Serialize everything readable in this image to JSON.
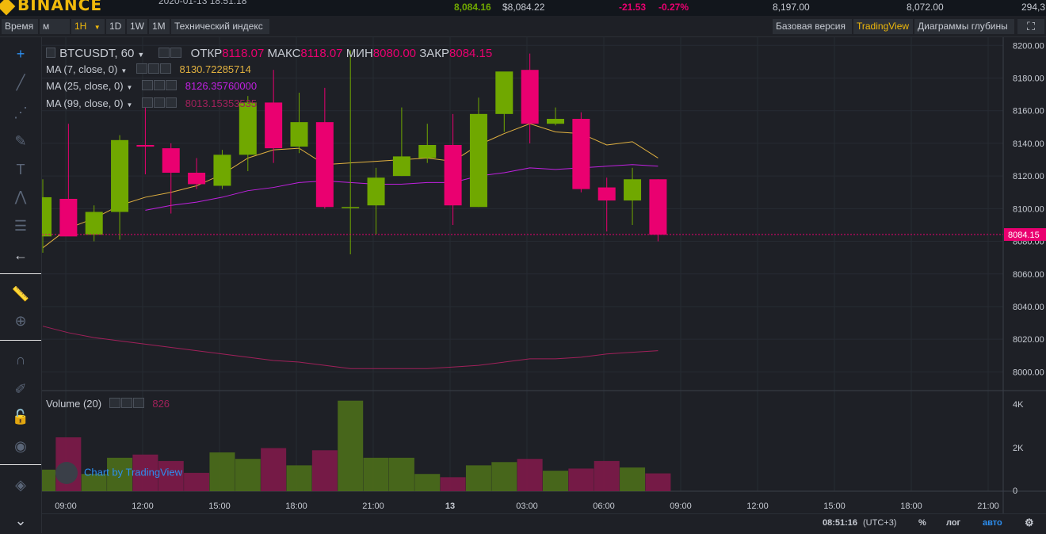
{
  "header": {
    "logo": "BINANCE",
    "datetime": "2020-01-13 18:51:18",
    "price": "8,084.16",
    "price_usd": "$8,084.22",
    "change": "-21.53",
    "change_pct": "-0.27%",
    "high": "8,197.00",
    "low": "8,072.00",
    "volume": "294,3"
  },
  "toolbar": {
    "time_label": "Время",
    "minutes": "м",
    "interval_1h": "1H",
    "interval_1d": "1D",
    "interval_1w": "1W",
    "interval_1m": "1M",
    "indicators": "Технический индекс",
    "basic_version": "Базовая версия",
    "tradingview": "TradingView",
    "depth_chart": "Диаграммы глубины"
  },
  "legend": {
    "symbol": "BTCUSDT, 60",
    "open_label": "ОТКР",
    "open": "8118.07",
    "high_label": "МАКС",
    "high": "8118.07",
    "low_label": "МИН",
    "low": "8080.00",
    "close_label": "ЗАКР",
    "close": "8084.15",
    "ma7": "MA (7, close, 0)",
    "ma7_val": "8130.72285714",
    "ma25": "MA (25, close, 0)",
    "ma25_val": "8126.35760000",
    "ma99": "MA (99, close, 0)",
    "ma99_val": "8013.15353535",
    "volume": "Volume (20)",
    "volume_val": "826"
  },
  "credit": "Chart by TradingView",
  "bottom": {
    "clock": "08:51:16",
    "tz": "(UTC+3)",
    "pct": "%",
    "log": "лог",
    "auto": "авто"
  },
  "colors": {
    "up": "#70a800",
    "down": "#ea0070",
    "ma7": "#e0b040",
    "ma25": "#c020e0",
    "ma99": "#a0205a",
    "accent": "#f0b90b"
  },
  "chart_data": {
    "type": "candlestick",
    "price_axis": {
      "ticks": [
        8000,
        8020,
        8040,
        8060,
        8080,
        8100,
        8120,
        8140,
        8160,
        8180,
        8200
      ],
      "range": [
        7990,
        8205
      ],
      "last_price_label": "8084.15"
    },
    "time_axis": {
      "labels": [
        "09:00",
        "12:00",
        "15:00",
        "18:00",
        "21:00",
        "13",
        "03:00",
        "06:00",
        "09:00",
        "12:00",
        "15:00",
        "18:00",
        "21:00"
      ]
    },
    "volume_axis": {
      "ticks": [
        "4K",
        "2K",
        "0"
      ]
    },
    "candles": [
      {
        "o": 8083,
        "h": 8118,
        "l": 8073,
        "c": 8107
      },
      {
        "o": 8106,
        "h": 8152,
        "l": 8084,
        "c": 8083
      },
      {
        "o": 8084,
        "h": 8102,
        "l": 8080,
        "c": 8098
      },
      {
        "o": 8098,
        "h": 8145,
        "l": 8081,
        "c": 8142
      },
      {
        "o": 8139,
        "h": 8163,
        "l": 8121,
        "c": 8138
      },
      {
        "o": 8137,
        "h": 8140,
        "l": 8097,
        "c": 8122
      },
      {
        "o": 8122,
        "h": 8131,
        "l": 8112,
        "c": 8115
      },
      {
        "o": 8114,
        "h": 8136,
        "l": 8112,
        "c": 8133
      },
      {
        "o": 8133,
        "h": 8169,
        "l": 8123,
        "c": 8165
      },
      {
        "o": 8165,
        "h": 8185,
        "l": 8128,
        "c": 8137
      },
      {
        "o": 8138,
        "h": 8171,
        "l": 8134,
        "c": 8153
      },
      {
        "o": 8153,
        "h": 8174,
        "l": 8100,
        "c": 8101
      },
      {
        "o": 8101,
        "h": 8197,
        "l": 8072,
        "c": 8101
      },
      {
        "o": 8102,
        "h": 8125,
        "l": 8084,
        "c": 8119
      },
      {
        "o": 8120,
        "h": 8162,
        "l": 8120,
        "c": 8132
      },
      {
        "o": 8131,
        "h": 8152,
        "l": 8128,
        "c": 8139
      },
      {
        "o": 8139,
        "h": 8158,
        "l": 8090,
        "c": 8102
      },
      {
        "o": 8101,
        "h": 8168,
        "l": 8101,
        "c": 8158
      },
      {
        "o": 8158,
        "h": 8183,
        "l": 8147,
        "c": 8184
      },
      {
        "o": 8185,
        "h": 8195,
        "l": 8140,
        "c": 8152
      },
      {
        "o": 8152,
        "h": 8162,
        "l": 8151,
        "c": 8155
      },
      {
        "o": 8155,
        "h": 8159,
        "l": 8110,
        "c": 8112
      },
      {
        "o": 8113,
        "h": 8119,
        "l": 8086,
        "c": 8105
      },
      {
        "o": 8105,
        "h": 8125,
        "l": 8090,
        "c": 8118
      },
      {
        "o": 8118,
        "h": 8118,
        "l": 8080,
        "c": 8084
      }
    ],
    "ma7": [
      8076,
      8088,
      8094,
      8102,
      8107,
      8110,
      8114,
      8121,
      8131,
      8136,
      8137,
      8127,
      8128,
      8129,
      8130,
      8131,
      8129,
      8139,
      8146,
      8152,
      8147,
      8146,
      8139,
      8141,
      8131
    ],
    "ma25": [
      null,
      null,
      null,
      null,
      8099,
      8102,
      8104,
      8107,
      8111,
      8113,
      8116,
      8117,
      8116,
      8115,
      8115,
      8116,
      8116,
      8120,
      8122,
      8125,
      8124,
      8125,
      8126,
      8127,
      8126
    ],
    "ma99": [
      8028,
      8024,
      8021,
      8019,
      8017,
      8015,
      8013,
      8011,
      8009,
      8007,
      8006,
      8004,
      8002,
      8002,
      8002,
      8002,
      8003,
      8004,
      8006,
      8008,
      8008,
      8009,
      8011,
      8012,
      8013
    ],
    "volumes": [
      1000,
      2500,
      800,
      1550,
      1700,
      1400,
      850,
      1800,
      1500,
      2000,
      1200,
      1900,
      4200,
      1550,
      1550,
      800,
      650,
      1200,
      1350,
      1500,
      950,
      1050,
      1400,
      1100,
      826
    ]
  }
}
